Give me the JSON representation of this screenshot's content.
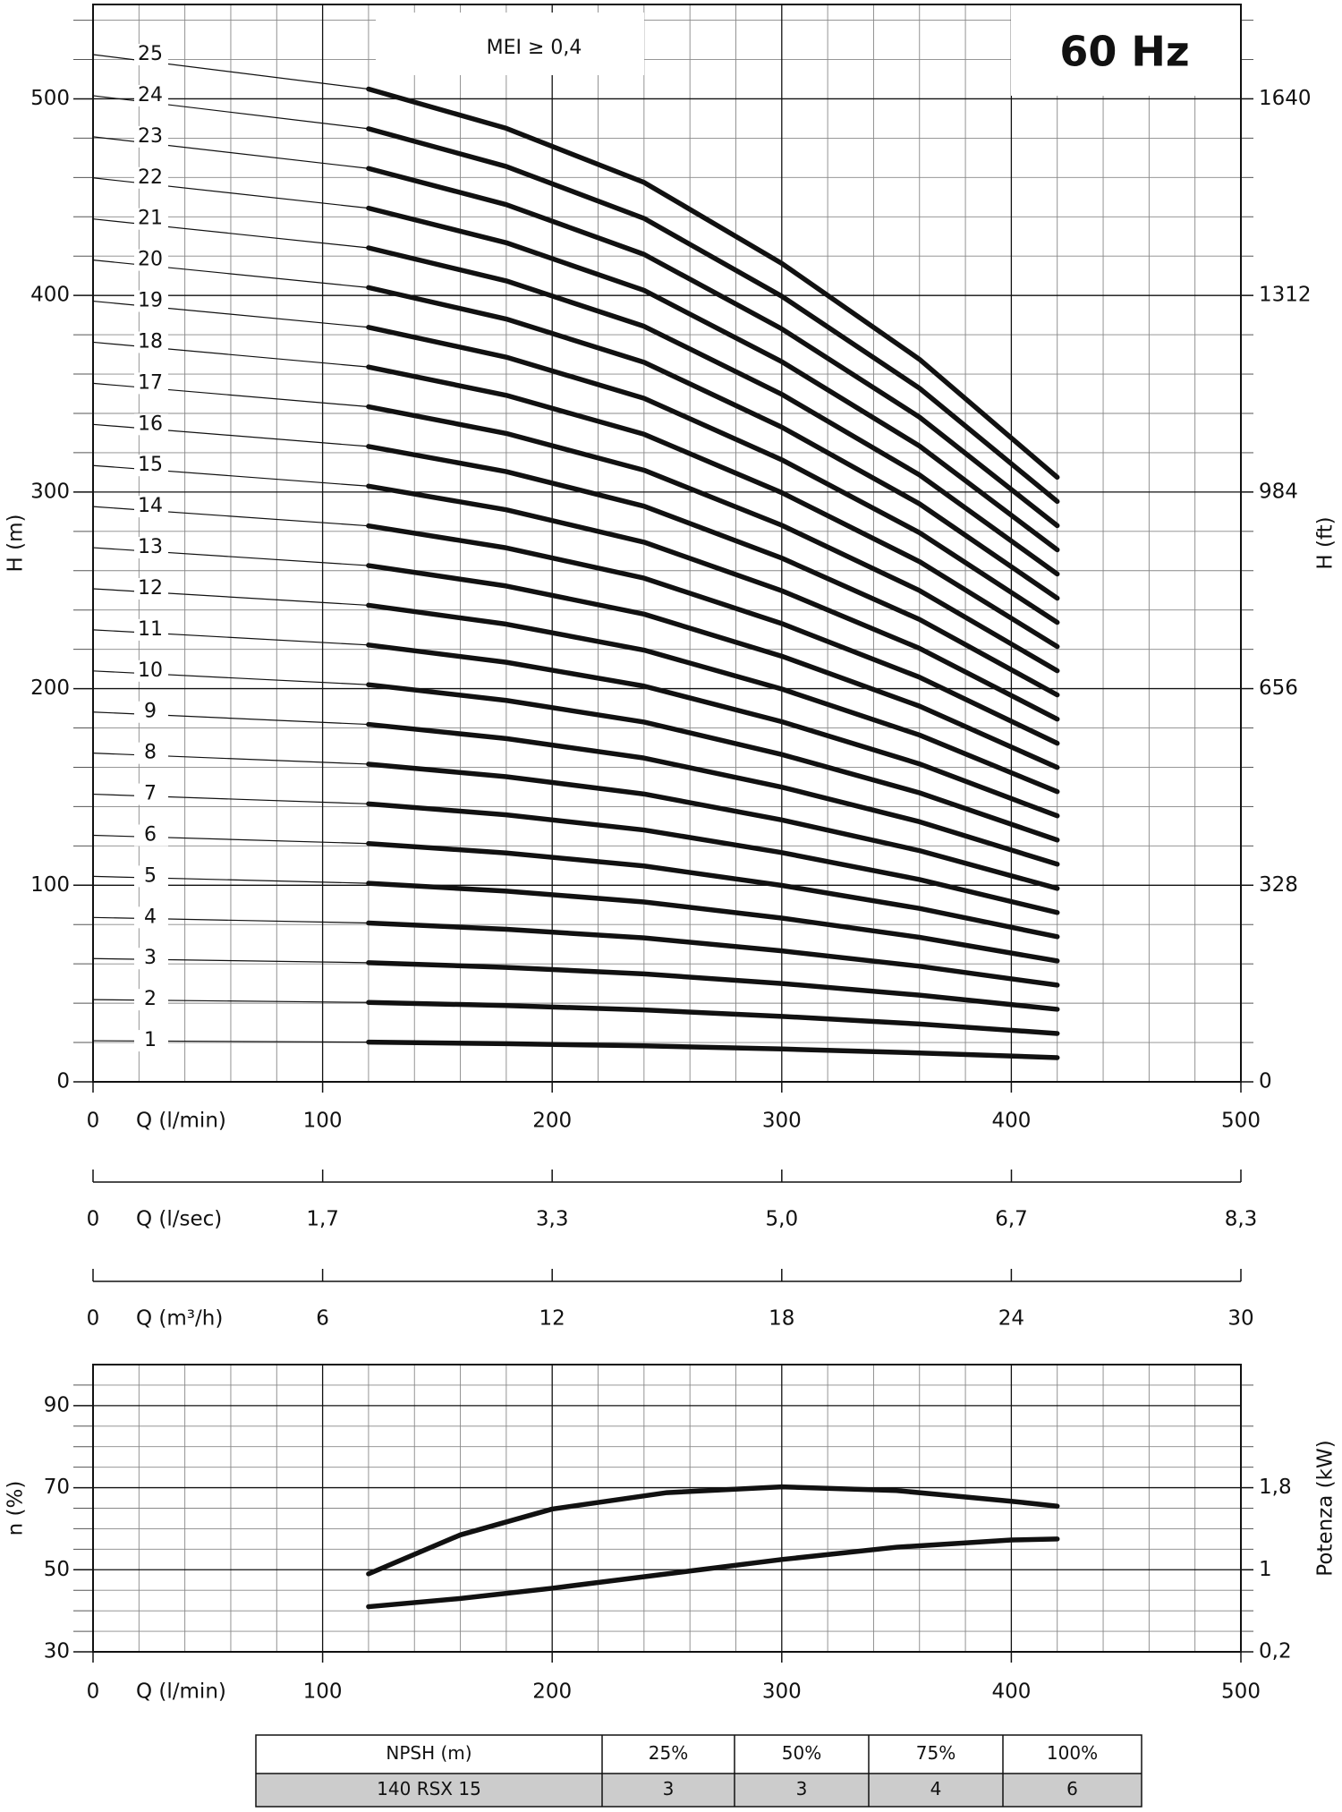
{
  "chart_data": [
    {
      "type": "line",
      "ylabel": "H (m)",
      "y2label": "H (ft)",
      "xlabel": "Q (l/min)",
      "annotations": [
        "MEI ≥ 0,4",
        "60 Hz"
      ],
      "color": "#111111",
      "x": [
        0,
        120,
        180,
        240,
        300,
        360,
        420
      ],
      "xlim": [
        0,
        500
      ],
      "xticks": [
        0,
        100,
        200,
        300,
        400,
        500
      ],
      "xminorticks": [
        20,
        40,
        60,
        80,
        120,
        140,
        160,
        180,
        220,
        240,
        260,
        280,
        320,
        340,
        360,
        380,
        420,
        440,
        460,
        480
      ],
      "ylim": [
        0,
        548
      ],
      "yticks": [
        0,
        100,
        200,
        300,
        400,
        500
      ],
      "yminorticks": [
        20,
        40,
        60,
        80,
        120,
        140,
        160,
        180,
        220,
        240,
        260,
        280,
        320,
        340,
        360,
        380,
        420,
        440,
        460,
        480,
        520,
        540
      ],
      "y2lim": [
        0,
        1797.4
      ],
      "y2ticks": [
        0,
        328,
        656,
        984,
        1312,
        1640
      ],
      "grid": true,
      "secondary_x_axes": [
        {
          "label": "Q (l/sec)",
          "xlim": [
            0,
            8.333
          ],
          "xticks": [
            0,
            {
              "value": 1.667,
              "label": "1,7"
            },
            {
              "value": 3.333,
              "label": "3,3"
            },
            {
              "value": 5,
              "label": "5,0"
            },
            {
              "value": 6.667,
              "label": "6,7"
            },
            {
              "value": 8.333,
              "label": "8,3"
            }
          ]
        },
        {
          "label": "Q (m³/h)",
          "xlim": [
            0,
            30
          ],
          "xticks": [
            0,
            6,
            12,
            18,
            24,
            30
          ]
        }
      ],
      "series": [
        {
          "name": "1",
          "values": [
            20.9,
            20.2,
            19.4,
            18.3,
            16.7,
            14.7,
            12.3
          ]
        },
        {
          "name": "2",
          "values": [
            41.8,
            40.4,
            38.8,
            36.6,
            33.3,
            29.4,
            24.6
          ]
        },
        {
          "name": "3",
          "values": [
            62.7,
            60.6,
            58.2,
            54.9,
            50.0,
            44.1,
            36.9
          ]
        },
        {
          "name": "4",
          "values": [
            83.6,
            80.8,
            77.6,
            73.2,
            66.6,
            58.8,
            49.2
          ]
        },
        {
          "name": "5",
          "values": [
            104.5,
            101,
            97,
            91.5,
            83.3,
            73.5,
            61.5
          ]
        },
        {
          "name": "6",
          "values": [
            125.4,
            121.2,
            116.4,
            109.8,
            99.9,
            88.2,
            73.8
          ]
        },
        {
          "name": "7",
          "values": [
            146.3,
            141.4,
            135.8,
            128.1,
            116.6,
            102.9,
            86.1
          ]
        },
        {
          "name": "8",
          "values": [
            167.2,
            161.6,
            155.2,
            146.4,
            133.2,
            117.6,
            98.4
          ]
        },
        {
          "name": "9",
          "values": [
            188.1,
            181.8,
            174.6,
            164.7,
            149.9,
            132.3,
            110.7
          ]
        },
        {
          "name": "10",
          "values": [
            209,
            202,
            194,
            183,
            166.5,
            147,
            123
          ]
        },
        {
          "name": "11",
          "values": [
            229.9,
            222.2,
            213.4,
            201.3,
            183.2,
            161.7,
            135.3
          ]
        },
        {
          "name": "12",
          "values": [
            250.8,
            242.4,
            232.8,
            219.6,
            199.8,
            176.4,
            147.6
          ]
        },
        {
          "name": "13",
          "values": [
            271.7,
            262.6,
            252.2,
            237.9,
            216.5,
            191.1,
            159.9
          ]
        },
        {
          "name": "14",
          "values": [
            292.6,
            282.8,
            271.6,
            256.2,
            233.1,
            205.8,
            172.2
          ]
        },
        {
          "name": "15",
          "values": [
            313.5,
            303,
            291,
            274.5,
            249.8,
            220.5,
            184.5
          ]
        },
        {
          "name": "16",
          "values": [
            334.4,
            323.2,
            310.4,
            292.8,
            266.4,
            235.2,
            196.8
          ]
        },
        {
          "name": "17",
          "values": [
            355.3,
            343.4,
            329.8,
            311.1,
            283.1,
            249.9,
            209.1
          ]
        },
        {
          "name": "18",
          "values": [
            376.2,
            363.6,
            349.2,
            329.4,
            299.7,
            264.6,
            221.4
          ]
        },
        {
          "name": "19",
          "values": [
            397.1,
            383.8,
            368.6,
            347.7,
            316.4,
            279.3,
            233.7
          ]
        },
        {
          "name": "20",
          "values": [
            418,
            404,
            388,
            366,
            333,
            294,
            246
          ]
        },
        {
          "name": "21",
          "values": [
            438.9,
            424.2,
            407.4,
            384.3,
            349.7,
            308.7,
            258.3
          ]
        },
        {
          "name": "22",
          "values": [
            459.8,
            444.4,
            426.8,
            402.6,
            366.3,
            323.4,
            270.6
          ]
        },
        {
          "name": "23",
          "values": [
            480.7,
            464.6,
            446.2,
            420.9,
            383,
            338.1,
            282.9
          ]
        },
        {
          "name": "24",
          "values": [
            501.6,
            484.8,
            465.6,
            439.2,
            399.6,
            352.8,
            295.2
          ]
        },
        {
          "name": "25",
          "values": [
            522.5,
            505,
            485,
            457.5,
            416.3,
            367.5,
            307.5
          ]
        }
      ]
    },
    {
      "type": "line",
      "ylabel": "n (%)",
      "y2label": "Potenza (kW)",
      "xlabel": "Q (l/min)",
      "color": "#111111",
      "x": [
        120,
        160,
        200,
        250,
        300,
        350,
        400,
        420
      ],
      "xlim": [
        0,
        500
      ],
      "xticks": [
        0,
        100,
        200,
        300,
        400,
        500
      ],
      "xminorticks": [
        20,
        40,
        60,
        80,
        120,
        140,
        160,
        180,
        220,
        240,
        260,
        280,
        320,
        340,
        360,
        380,
        420,
        440,
        460,
        480
      ],
      "ylim": [
        30,
        100
      ],
      "yticks": [
        30,
        50,
        70,
        90
      ],
      "yminorticks": [
        35,
        40,
        45,
        55,
        60,
        65,
        75,
        80,
        85,
        95
      ],
      "y2lim": [
        0.2,
        3.0
      ],
      "y2ticks": [
        {
          "value": 0.2,
          "label": "0,2"
        },
        1,
        {
          "value": 1.8,
          "label": "1,8"
        }
      ],
      "grid": true,
      "series": [
        {
          "values": [
            49,
            58.5,
            64.8,
            68.8,
            70.2,
            69.3,
            66.7,
            65.5
          ]
        },
        {
          "axis": "y2",
          "values": [
            0.64,
            0.72,
            0.82,
            0.96,
            1.1,
            1.22,
            1.29,
            1.3
          ]
        }
      ]
    }
  ],
  "table": {
    "header": [
      "NPSH (m)",
      "25%",
      "50%",
      "75%",
      "100%"
    ],
    "rows": [
      [
        "140 RSX 15",
        "3",
        "3",
        "4",
        "6"
      ]
    ]
  }
}
